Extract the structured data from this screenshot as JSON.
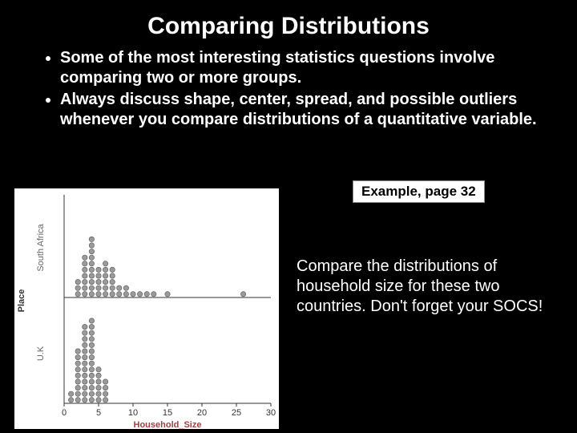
{
  "title": "Comparing Distributions",
  "bullets": [
    "Some of the most interesting statistics questions involve comparing two or more groups.",
    "Always discuss shape, center, spread, and possible outliers whenever you compare distributions of a quantitative variable."
  ],
  "example_label": "Example, page 32",
  "compare_text": "Compare the distributions of household size for these two countries.  Don't forget your SOCS!",
  "chart": {
    "type": "stacked-dotplot",
    "background_color": "#ffffff",
    "dot_fill": "#9a9a9a",
    "dot_stroke": "#555555",
    "dot_radius": 3.2,
    "axis_color": "#333333",
    "x_label": "Household_Size",
    "x_label_color": "#a04040",
    "y_label": "Place",
    "y_label_color": "#666666",
    "x_ticks": [
      0,
      5,
      10,
      15,
      20,
      25,
      30
    ],
    "x_min": 0,
    "x_max": 30,
    "panels": [
      {
        "name": "South Africa",
        "counts": {
          "2": 3,
          "3": 7,
          "4": 10,
          "5": 5,
          "6": 6,
          "7": 5,
          "8": 2,
          "9": 2,
          "10": 1,
          "11": 1,
          "12": 1,
          "13": 1,
          "15": 1,
          "26": 1
        }
      },
      {
        "name": "U.K",
        "counts": {
          "1": 2,
          "2": 9,
          "3": 13,
          "4": 14,
          "5": 6,
          "6": 4
        }
      }
    ]
  }
}
